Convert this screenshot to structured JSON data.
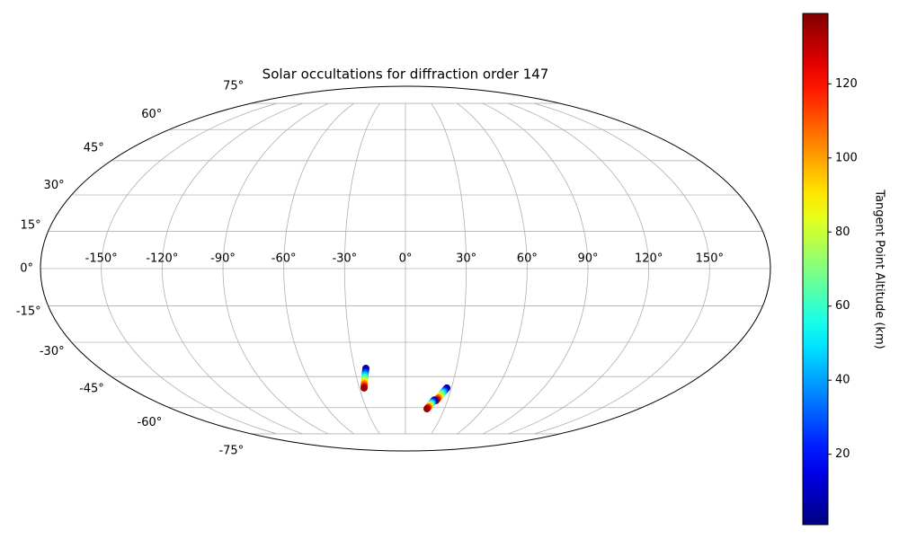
{
  "chart_data": {
    "type": "scatter",
    "projection": "mollweide",
    "title": "Solar occultations for diffraction order 147",
    "colorbar_label": "Tangent Point Altitude (km)",
    "colormap": "jet",
    "clim": [
      1,
      139
    ],
    "cticks": [
      20,
      40,
      60,
      80,
      100,
      120
    ],
    "grid": true,
    "xticks": [
      {
        "value": -150,
        "label": "-150°"
      },
      {
        "value": -120,
        "label": "-120°"
      },
      {
        "value": -90,
        "label": "-90°"
      },
      {
        "value": -60,
        "label": "-60°"
      },
      {
        "value": -30,
        "label": "-30°"
      },
      {
        "value": 0,
        "label": "0°"
      },
      {
        "value": 30,
        "label": "30°"
      },
      {
        "value": 60,
        "label": "60°"
      },
      {
        "value": 90,
        "label": "90°"
      },
      {
        "value": 120,
        "label": "120°"
      },
      {
        "value": 150,
        "label": "150°"
      }
    ],
    "yticks": [
      {
        "value": -75,
        "label": "-75°"
      },
      {
        "value": -60,
        "label": "-60°"
      },
      {
        "value": -45,
        "label": "-45°"
      },
      {
        "value": -30,
        "label": "-30°"
      },
      {
        "value": -15,
        "label": "-15°"
      },
      {
        "value": 0,
        "label": "0°"
      },
      {
        "value": 15,
        "label": "15°"
      },
      {
        "value": 30,
        "label": "30°"
      },
      {
        "value": 45,
        "label": "45°"
      },
      {
        "value": 60,
        "label": "60°"
      },
      {
        "value": 75,
        "label": "75°"
      }
    ],
    "x": [
      -23.3,
      -23.7,
      -24.1,
      -24.5,
      -24.9,
      -25.4,
      -25.8,
      -26.2,
      -26.6,
      -27,
      27,
      26.4,
      25.9,
      25.3,
      24.7,
      24.2,
      23.6,
      23.0,
      22.5,
      21.9,
      20.5,
      20.1,
      19.6,
      19.2,
      18.8,
      18.3,
      17.9,
      17.5,
      17.0,
      16.6
    ],
    "y": [
      -41.3,
      -42.3,
      -43.3,
      -44.3,
      -45.3,
      -46.3,
      -47.3,
      -48.3,
      -49.3,
      -50.3,
      -50.3,
      -51.0,
      -51.7,
      -52.3,
      -53.0,
      -53.7,
      -54.4,
      -55.0,
      -55.7,
      -56.4,
      -56.1,
      -56.6,
      -57.1,
      -57.6,
      -58.1,
      -58.6,
      -59.1,
      -59.6,
      -60.1,
      -60.6
    ],
    "values": [
      1,
      15,
      30,
      45,
      60,
      75,
      90,
      105,
      120,
      135,
      1,
      15,
      30,
      45,
      60,
      75,
      90,
      105,
      120,
      135,
      1,
      15,
      30,
      45,
      60,
      75,
      90,
      105,
      120,
      135
    ]
  }
}
